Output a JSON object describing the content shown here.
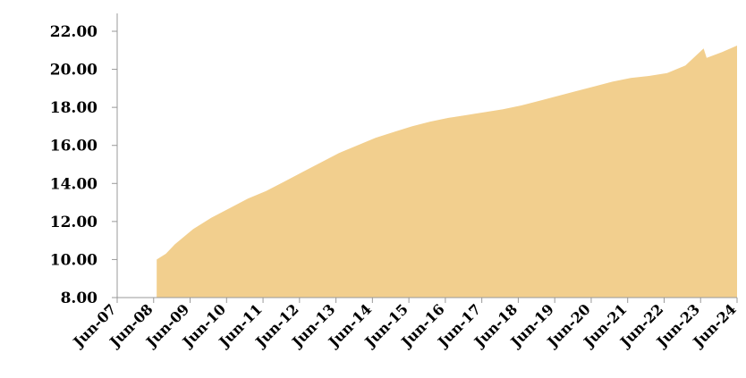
{
  "chart_data": {
    "type": "area",
    "title": "",
    "xlabel": "",
    "ylabel": "",
    "ylim": [
      8,
      22
    ],
    "x_tick_labels": [
      "Jun-07",
      "Jun-08",
      "Jun-09",
      "Jun-10",
      "Jun-11",
      "Jun-12",
      "Jun-13",
      "Jun-14",
      "Jun-15",
      "Jun-16",
      "Jun-17",
      "Jun-18",
      "Jun-19",
      "Jun-20",
      "Jun-21",
      "Jun-22",
      "Jun-23",
      "Jun-24"
    ],
    "y_tick_labels": [
      "8.00",
      "10.00",
      "12.00",
      "14.00",
      "16.00",
      "18.00",
      "20.00",
      "22.00"
    ],
    "y_ticks": [
      8,
      10,
      12,
      14,
      16,
      18,
      20,
      22
    ],
    "grid": false,
    "fill_color": "#f2cf8e",
    "series": [
      {
        "x": [
          "2008-07",
          "2008-10",
          "2009-01",
          "2009-04",
          "2009-07",
          "2010-01",
          "2010-07",
          "2011-01",
          "2011-07",
          "2012-01",
          "2012-07",
          "2013-01",
          "2013-07",
          "2014-01",
          "2014-07",
          "2015-01",
          "2015-07",
          "2016-01",
          "2016-07",
          "2017-01",
          "2017-07",
          "2018-01",
          "2018-07",
          "2019-01",
          "2019-07",
          "2020-01",
          "2020-07",
          "2021-01",
          "2021-07",
          "2021-10",
          "2022-01",
          "2022-07",
          "2023-01",
          "2023-07",
          "2023-08",
          "2024-01",
          "2024-06"
        ],
        "values": [
          10.0,
          10.3,
          10.8,
          11.2,
          11.6,
          12.2,
          12.7,
          13.2,
          13.6,
          14.1,
          14.6,
          15.1,
          15.6,
          16.0,
          16.4,
          16.7,
          17.0,
          17.25,
          17.45,
          17.6,
          17.75,
          17.9,
          18.1,
          18.35,
          18.6,
          18.85,
          19.1,
          19.35,
          19.55,
          19.6,
          19.65,
          19.8,
          20.2,
          21.1,
          20.6,
          20.9,
          21.25
        ]
      }
    ]
  }
}
